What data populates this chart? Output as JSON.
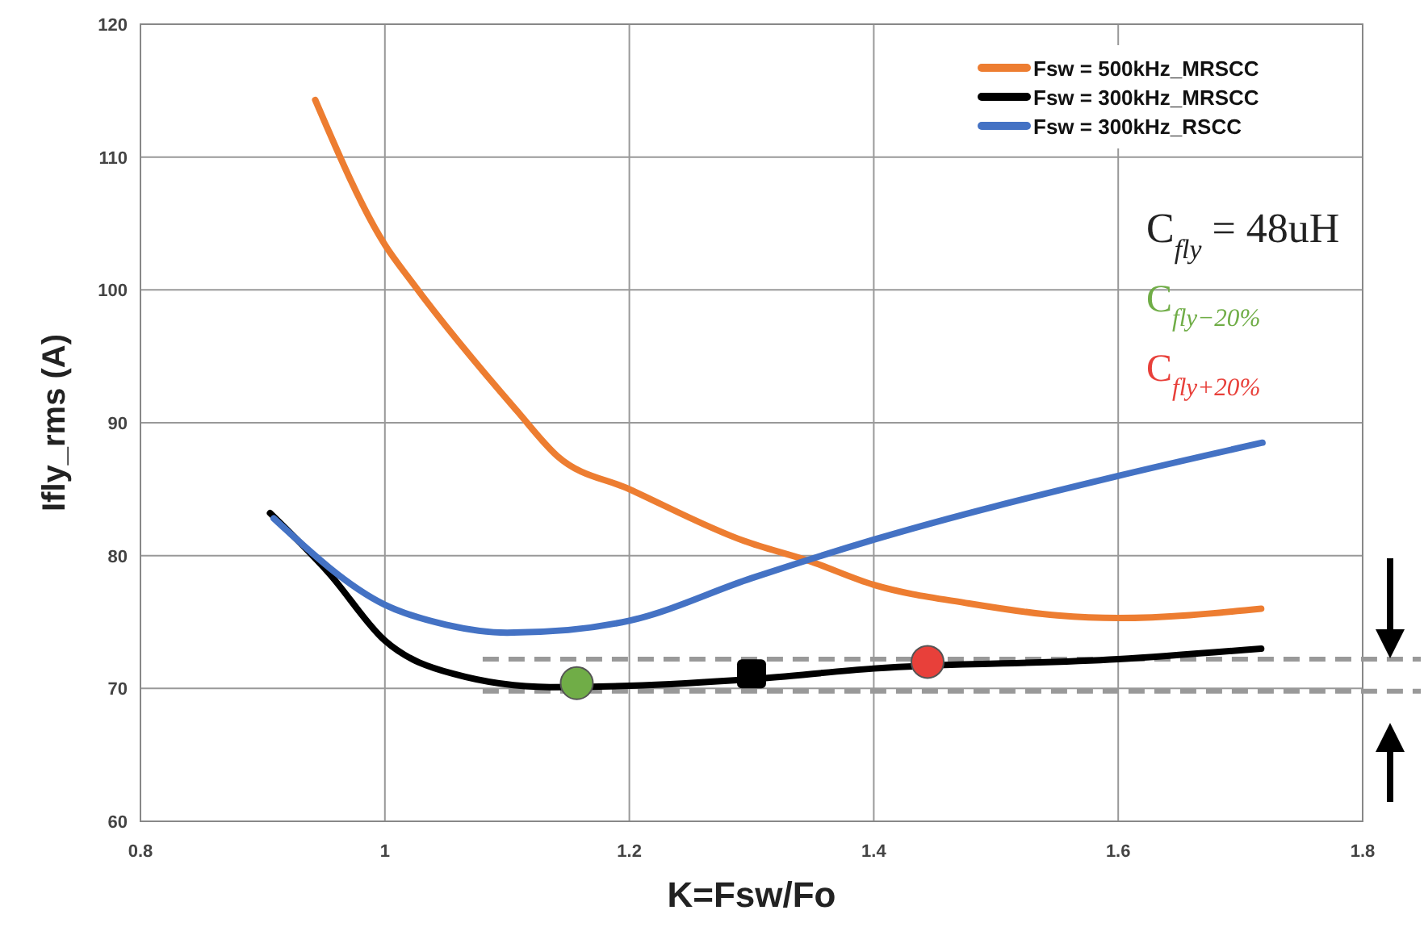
{
  "chart_data": {
    "type": "line",
    "xlabel": "K=Fsw/Fo",
    "ylabel": "Ifly_rms (A)",
    "xlim": [
      0.8,
      1.8
    ],
    "xticks": [
      0.8,
      1,
      1.2,
      1.4,
      1.6,
      1.8
    ],
    "ylim": [
      60,
      120
    ],
    "yticks": [
      60,
      70,
      80,
      90,
      100,
      110,
      120
    ],
    "grid": true,
    "legend": "top right",
    "marker": "none",
    "line_style": "solid",
    "series": [
      {
        "name": "Fsw = 500kHz_MRSCC",
        "color": "#ed7d31",
        "x": [
          0.943,
          1.0,
          1.022,
          1.108,
          1.141,
          1.2,
          1.294,
          1.347,
          1.4,
          1.478,
          1.55,
          1.6,
          1.717
        ],
        "values": [
          114.3,
          103.4,
          100.6,
          90.9,
          87.5,
          85.0,
          81.1,
          79.6,
          77.8,
          76.4,
          75.5,
          75.3,
          76.0
        ]
      },
      {
        "name": "Fsw = 300kHz_MRSCC",
        "color": "#000000",
        "x": [
          0.906,
          0.954,
          1.0,
          1.056,
          1.135,
          1.2,
          1.3,
          1.4,
          1.6,
          1.717
        ],
        "values": [
          83.2,
          78.7,
          73.6,
          71.1,
          70.1,
          70.2,
          70.7,
          71.5,
          72.2,
          73.0
        ]
      },
      {
        "name": "Fsw = 300kHz_RSCC",
        "color": "#4472c4",
        "x": [
          0.909,
          1.0,
          1.05,
          1.1,
          1.15,
          1.2,
          1.3,
          1.4,
          1.6,
          1.718
        ],
        "values": [
          82.8,
          76.3,
          74.8,
          74.2,
          74.4,
          75.1,
          78.3,
          81.2,
          86.0,
          88.5
        ]
      },
      {
        "type": "scatter",
        "marker": "circle",
        "color": "#70ad47",
        "x": [
          1.157
        ],
        "values": [
          70.4
        ]
      },
      {
        "type": "scatter",
        "marker": "square",
        "color": "#000000",
        "x": [
          1.3
        ],
        "values": [
          71.1
        ]
      },
      {
        "type": "scatter",
        "marker": "circle",
        "color": "#e8403a",
        "x": [
          1.444
        ],
        "values": [
          72.0
        ]
      }
    ],
    "ref_lines": [
      {
        "axis": "y",
        "value": 72.2,
        "color": "#999999",
        "line_style": "dashed"
      },
      {
        "axis": "y",
        "value": 69.8,
        "color": "#999999",
        "line_style": "dashed"
      }
    ],
    "annotations": [
      "C$_{fly}$ = 48uH",
      "C$_{fly−20%}$",
      "C$_{fly+20%}$"
    ]
  }
}
